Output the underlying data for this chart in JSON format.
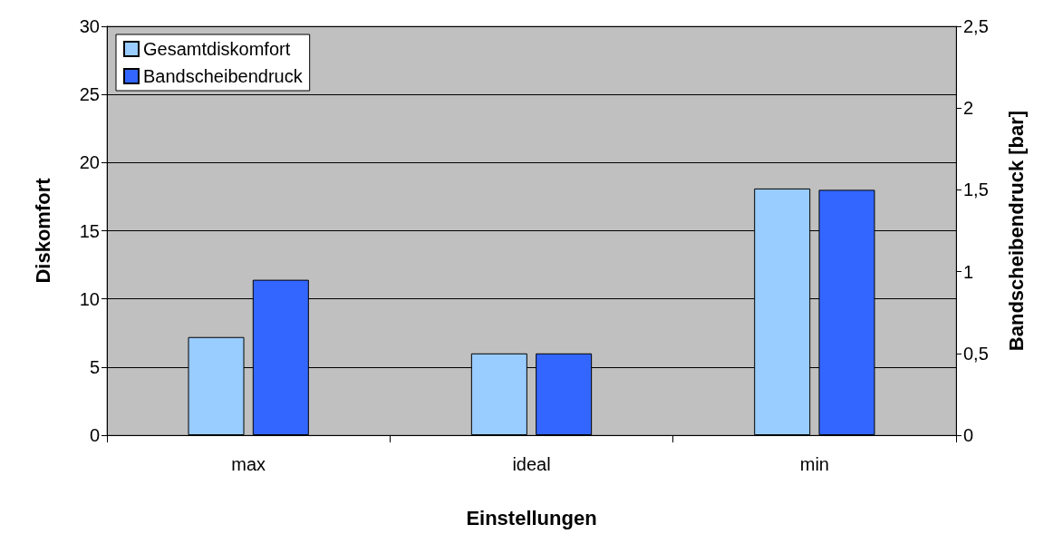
{
  "chart_data": {
    "type": "bar",
    "xlabel": "Einstellungen",
    "ylabel": "Diskomfort",
    "y2label": "Bandscheibendruck [bar]",
    "categories": [
      "max",
      "ideal",
      "min"
    ],
    "series": [
      {
        "name": "Gesamtdiskomfort",
        "color": "#99ccff",
        "values": [
          7.2,
          6.0,
          18.1
        ]
      },
      {
        "name": "Bandscheibendruck",
        "color": "#3366ff",
        "axis": "y2",
        "values": [
          0.95,
          0.5,
          1.5
        ]
      }
    ],
    "ylim": [
      0,
      30
    ],
    "yticks": [
      0,
      5,
      10,
      15,
      20,
      25,
      30
    ],
    "y2lim": [
      0,
      2.5
    ],
    "y2ticks": [
      0,
      {
        "value": 0.5,
        "label": "0,5"
      },
      1,
      {
        "value": 1.5,
        "label": "1,5"
      },
      2,
      {
        "value": 2.5,
        "label": "2,5"
      }
    ],
    "grid": "y",
    "legend": "top left"
  }
}
